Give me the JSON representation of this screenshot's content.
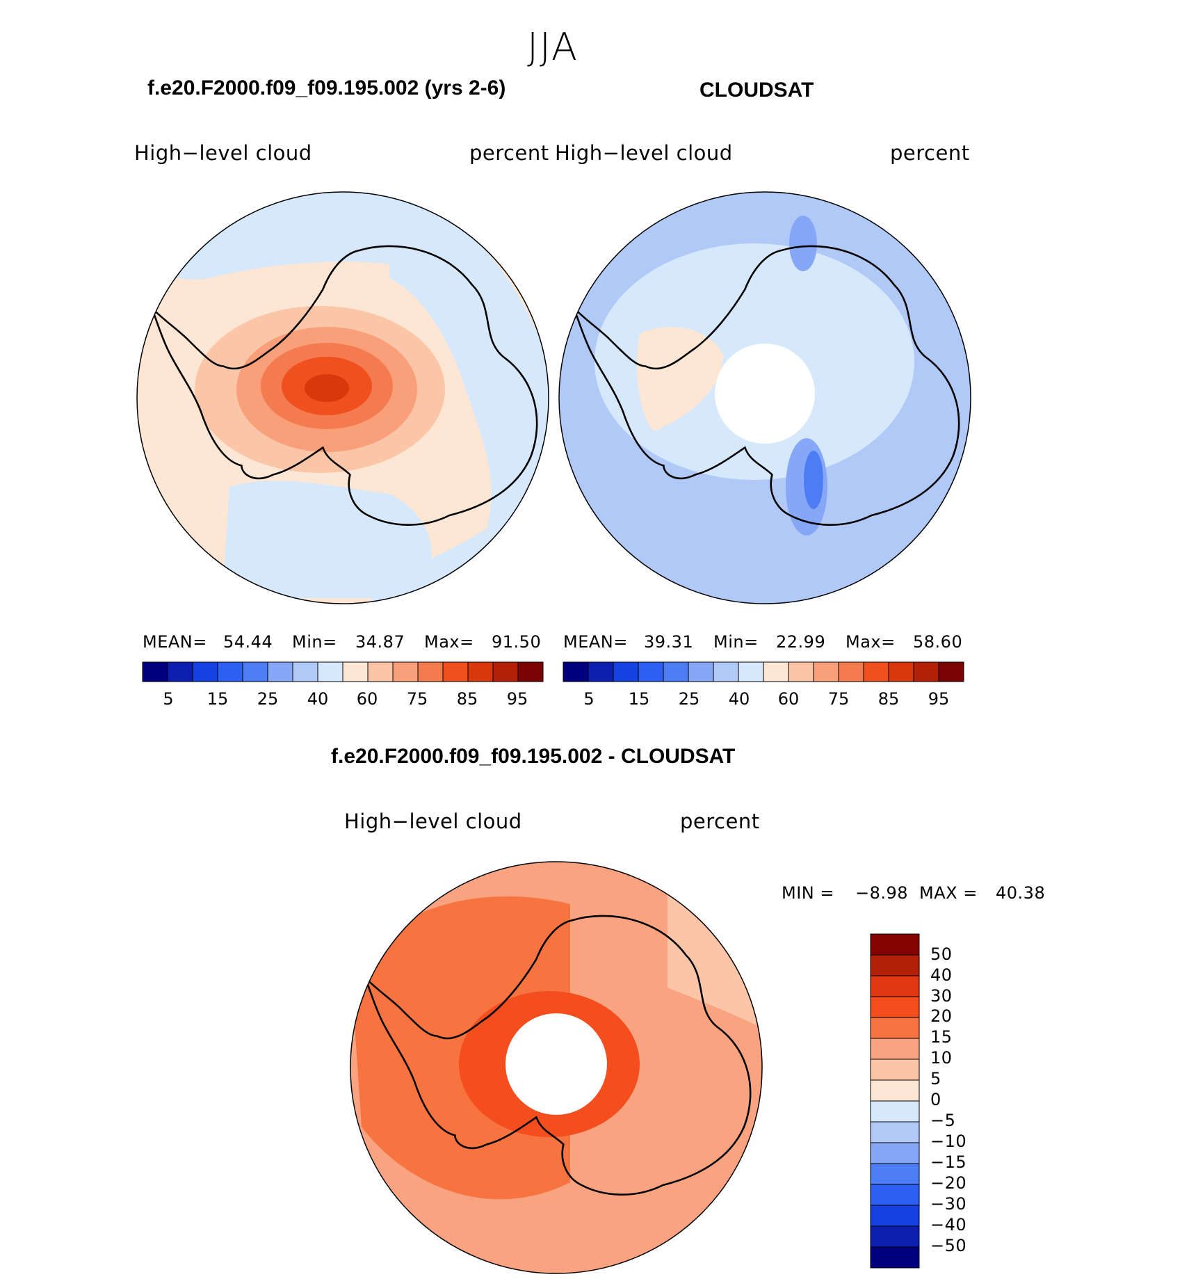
{
  "season": "JJA",
  "panel1": {
    "title": "f.e20.F2000.f09_f09.195.002 (yrs 2-6)",
    "left_label": "High−level  cloud",
    "right_label": "percent",
    "stats": {
      "mean_label": "MEAN=",
      "mean": "54.44",
      "min_label": "Min=",
      "min": "34.87",
      "max_label": "Max=",
      "max": "91.50"
    }
  },
  "panel2": {
    "title": "CLOUDSAT",
    "left_label": "High−level  cloud",
    "right_label": "percent",
    "stats": {
      "mean_label": "MEAN=",
      "mean": "39.31",
      "min_label": "Min=",
      "min": "22.99",
      "max_label": "Max=",
      "max": "58.60"
    }
  },
  "panel3": {
    "title": "f.e20.F2000.f09_f09.195.002 - CLOUDSAT",
    "left_label": "High−level  cloud",
    "right_label": "percent",
    "minmax": {
      "min_label": "MIN  =",
      "min": "−8.98",
      "max_label": "MAX  =",
      "max": "40.38"
    }
  },
  "horizontal_colorbar": {
    "colors": [
      "#00007f",
      "#0d1fb0",
      "#1541e0",
      "#2c5ff2",
      "#4d7df5",
      "#85a7f5",
      "#b0c9f7",
      "#d6e8fb",
      "#fde6d3",
      "#fbc6a8",
      "#f9a07a",
      "#f47b4f",
      "#f04f1e",
      "#d9370c",
      "#b41f08",
      "#7b0303"
    ],
    "tick_labels": [
      "5",
      "15",
      "25",
      "40",
      "60",
      "75",
      "85",
      "95"
    ]
  },
  "vertical_colorbar": {
    "colors_top_to_bottom": [
      "#850303",
      "#b41f08",
      "#e03810",
      "#f54e1e",
      "#f7733f",
      "#f9a380",
      "#fbc6a8",
      "#fde6d3",
      "#d6e8fb",
      "#b0c9f7",
      "#85a7f5",
      "#4d7df5",
      "#2c5ff2",
      "#1541e0",
      "#0d1fb0",
      "#00007f"
    ],
    "tick_labels": [
      "50",
      "40",
      "30",
      "20",
      "15",
      "10",
      "5",
      "0",
      "−5",
      "−10",
      "−15",
      "−20",
      "−30",
      "−40",
      "−50"
    ]
  }
}
